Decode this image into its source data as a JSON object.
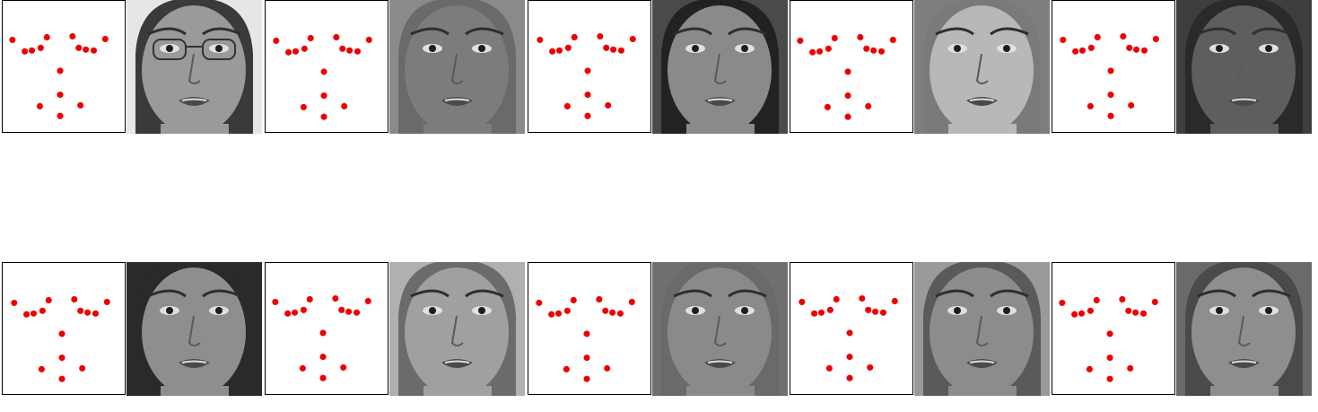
{
  "colors": {
    "landmark": "#ee0000",
    "frame": "#000000"
  },
  "panels": [
    {
      "row": 0,
      "tone": "#9a9a9a",
      "bg": "#e6e6e6",
      "hair": "#3a3a3a",
      "glasses": true
    },
    {
      "row": 0,
      "tone": "#7c7c7c",
      "bg": "#8a8a8a",
      "hair": "#6a6a6a",
      "glasses": false
    },
    {
      "row": 0,
      "tone": "#8a8a8a",
      "bg": "#4a4a4a",
      "hair": "#222222",
      "glasses": false
    },
    {
      "row": 0,
      "tone": "#b8b8b8",
      "bg": "#7e7e7e",
      "hair": "#7a7a7a",
      "glasses": false
    },
    {
      "row": 0,
      "tone": "#5e5e5e",
      "bg": "#3e3e3e",
      "hair": "#2a2a2a",
      "glasses": false
    },
    {
      "row": 1,
      "tone": "#8e8e8e",
      "bg": "#2a2a2a",
      "hair": "#2a2a2a",
      "glasses": false
    },
    {
      "row": 1,
      "tone": "#a0a0a0",
      "bg": "#b0b0b0",
      "hair": "#6b6b6b",
      "glasses": false
    },
    {
      "row": 1,
      "tone": "#8a8a8a",
      "bg": "#707070",
      "hair": "#6a6a6a",
      "glasses": false
    },
    {
      "row": 1,
      "tone": "#8c8c8c",
      "bg": "#9a9a9a",
      "hair": "#5a5a5a",
      "glasses": false
    },
    {
      "row": 1,
      "tone": "#8e8e8e",
      "bg": "#6a6a6a",
      "hair": "#4a4a4a",
      "glasses": false
    }
  ]
}
